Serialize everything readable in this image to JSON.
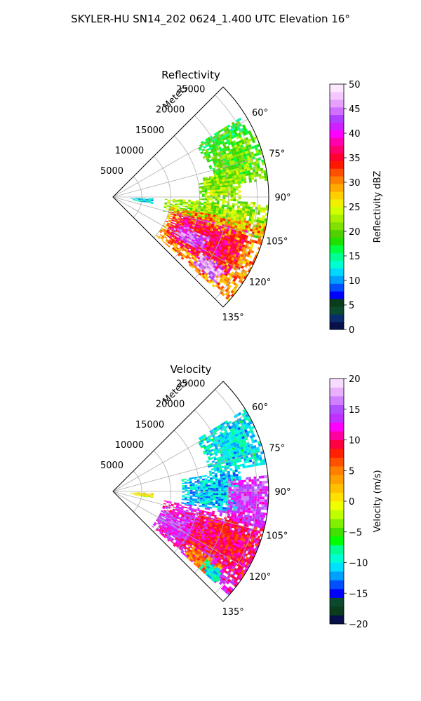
{
  "figure": {
    "title": "SKYLER-HU  SN14_202  0624_1.400 UTC Elevation 16°"
  },
  "chart_data": [
    {
      "type": "polar-sector",
      "title": "Reflectivity",
      "radial_label": "Meters",
      "r_ticks": [
        5000,
        10000,
        15000,
        20000,
        25000
      ],
      "r_max": 27000,
      "theta_ticks": [
        "60°",
        "75°",
        "90°",
        "105°",
        "120°",
        "135°"
      ],
      "theta_range_deg": [
        45,
        135
      ],
      "field": "reflectivity",
      "colorbar": {
        "label": "Reflectivity dBZ",
        "range": [
          0,
          50
        ],
        "ticks": [
          "0",
          "5",
          "10",
          "15",
          "20",
          "25",
          "30",
          "35",
          "40",
          "45",
          "50"
        ],
        "colors": [
          "#08104a",
          "#0a2d6e",
          "#0b4a2e",
          "#0b3c1c",
          "#0000ff",
          "#0050ff",
          "#00a0ff",
          "#00d8ff",
          "#00ffd0",
          "#00ff90",
          "#00ff40",
          "#20e000",
          "#50d000",
          "#80e000",
          "#a8f000",
          "#d0ff00",
          "#f0f000",
          "#ffd000",
          "#ffa800",
          "#ff8000",
          "#ff5000",
          "#ff1800",
          "#ff0030",
          "#ff0070",
          "#ff00b0",
          "#ff00ff",
          "#d020ff",
          "#b040ff",
          "#d070ff",
          "#e8a0ff",
          "#f4c8ff",
          "#fce8ff"
        ]
      },
      "echo_regions": [
        {
          "theta_deg": [
            58,
            64
          ],
          "r_m": [
            17000,
            26000
          ],
          "level": 18
        },
        {
          "theta_deg": [
            63,
            84
          ],
          "r_m": [
            17000,
            27000
          ],
          "level": 20
        },
        {
          "theta_deg": [
            78,
            92
          ],
          "r_m": [
            15000,
            22000
          ],
          "level": 22
        },
        {
          "theta_deg": [
            92,
            106
          ],
          "r_m": [
            9000,
            27000
          ],
          "level": 22
        },
        {
          "theta_deg": [
            100,
            132
          ],
          "r_m": [
            10000,
            27000
          ],
          "level": 30
        },
        {
          "theta_deg": [
            104,
            126
          ],
          "r_m": [
            11000,
            24000
          ],
          "level": 36
        },
        {
          "theta_deg": [
            112,
            122
          ],
          "r_m": [
            12000,
            18000
          ],
          "level": 44
        },
        {
          "theta_deg": [
            122,
            130
          ],
          "r_m": [
            18000,
            23000
          ],
          "level": 46
        },
        {
          "theta_deg": [
            92,
            100
          ],
          "r_m": [
            3000,
            7000
          ],
          "level": 12
        }
      ]
    },
    {
      "type": "polar-sector",
      "title": "Velocity",
      "radial_label": "Meters",
      "r_ticks": [
        5000,
        10000,
        15000,
        20000,
        25000
      ],
      "r_max": 27000,
      "theta_ticks": [
        "60°",
        "75°",
        "90°",
        "105°",
        "120°",
        "135°"
      ],
      "theta_range_deg": [
        45,
        135
      ],
      "field": "velocity",
      "colorbar": {
        "label": "Velocity (m/s)",
        "range": [
          -20,
          20
        ],
        "ticks": [
          "−20",
          "−15",
          "−10",
          "−5",
          "0",
          "5",
          "10",
          "15",
          "20"
        ],
        "colors": [
          "#08104a",
          "#0b3c1c",
          "#0b4a2e",
          "#0000ff",
          "#0050ff",
          "#00a0ff",
          "#00e0ff",
          "#00ffd0",
          "#00ff90",
          "#00ff00",
          "#40e000",
          "#80f000",
          "#c0ff00",
          "#f0ff00",
          "#ffe000",
          "#ffc000",
          "#ffa000",
          "#ff8000",
          "#ff5000",
          "#ff2000",
          "#ff0040",
          "#ff00a0",
          "#ff00ff",
          "#c030ff",
          "#b050ff",
          "#d080ff",
          "#e8b0ff",
          "#f8dcff"
        ]
      },
      "echo_regions": [
        {
          "theta_deg": [
            58,
            80
          ],
          "r_m": [
            17000,
            27000
          ],
          "level": -10
        },
        {
          "theta_deg": [
            80,
            100
          ],
          "r_m": [
            12000,
            22000
          ],
          "level": -11
        },
        {
          "theta_deg": [
            84,
            104
          ],
          "r_m": [
            20000,
            27000
          ],
          "level": 14
        },
        {
          "theta_deg": [
            100,
            132
          ],
          "r_m": [
            9000,
            27000
          ],
          "level": 12
        },
        {
          "theta_deg": [
            104,
            124
          ],
          "r_m": [
            15000,
            27000
          ],
          "level": 9
        },
        {
          "theta_deg": [
            110,
            124
          ],
          "r_m": [
            9000,
            15000
          ],
          "level": 14
        },
        {
          "theta_deg": [
            124,
            132
          ],
          "r_m": [
            16000,
            23000
          ],
          "level": 5
        },
        {
          "theta_deg": [
            126,
            132
          ],
          "r_m": [
            20000,
            24000
          ],
          "level": -10
        },
        {
          "theta_deg": [
            92,
            100
          ],
          "r_m": [
            3000,
            7000
          ],
          "level": 0
        }
      ]
    }
  ]
}
